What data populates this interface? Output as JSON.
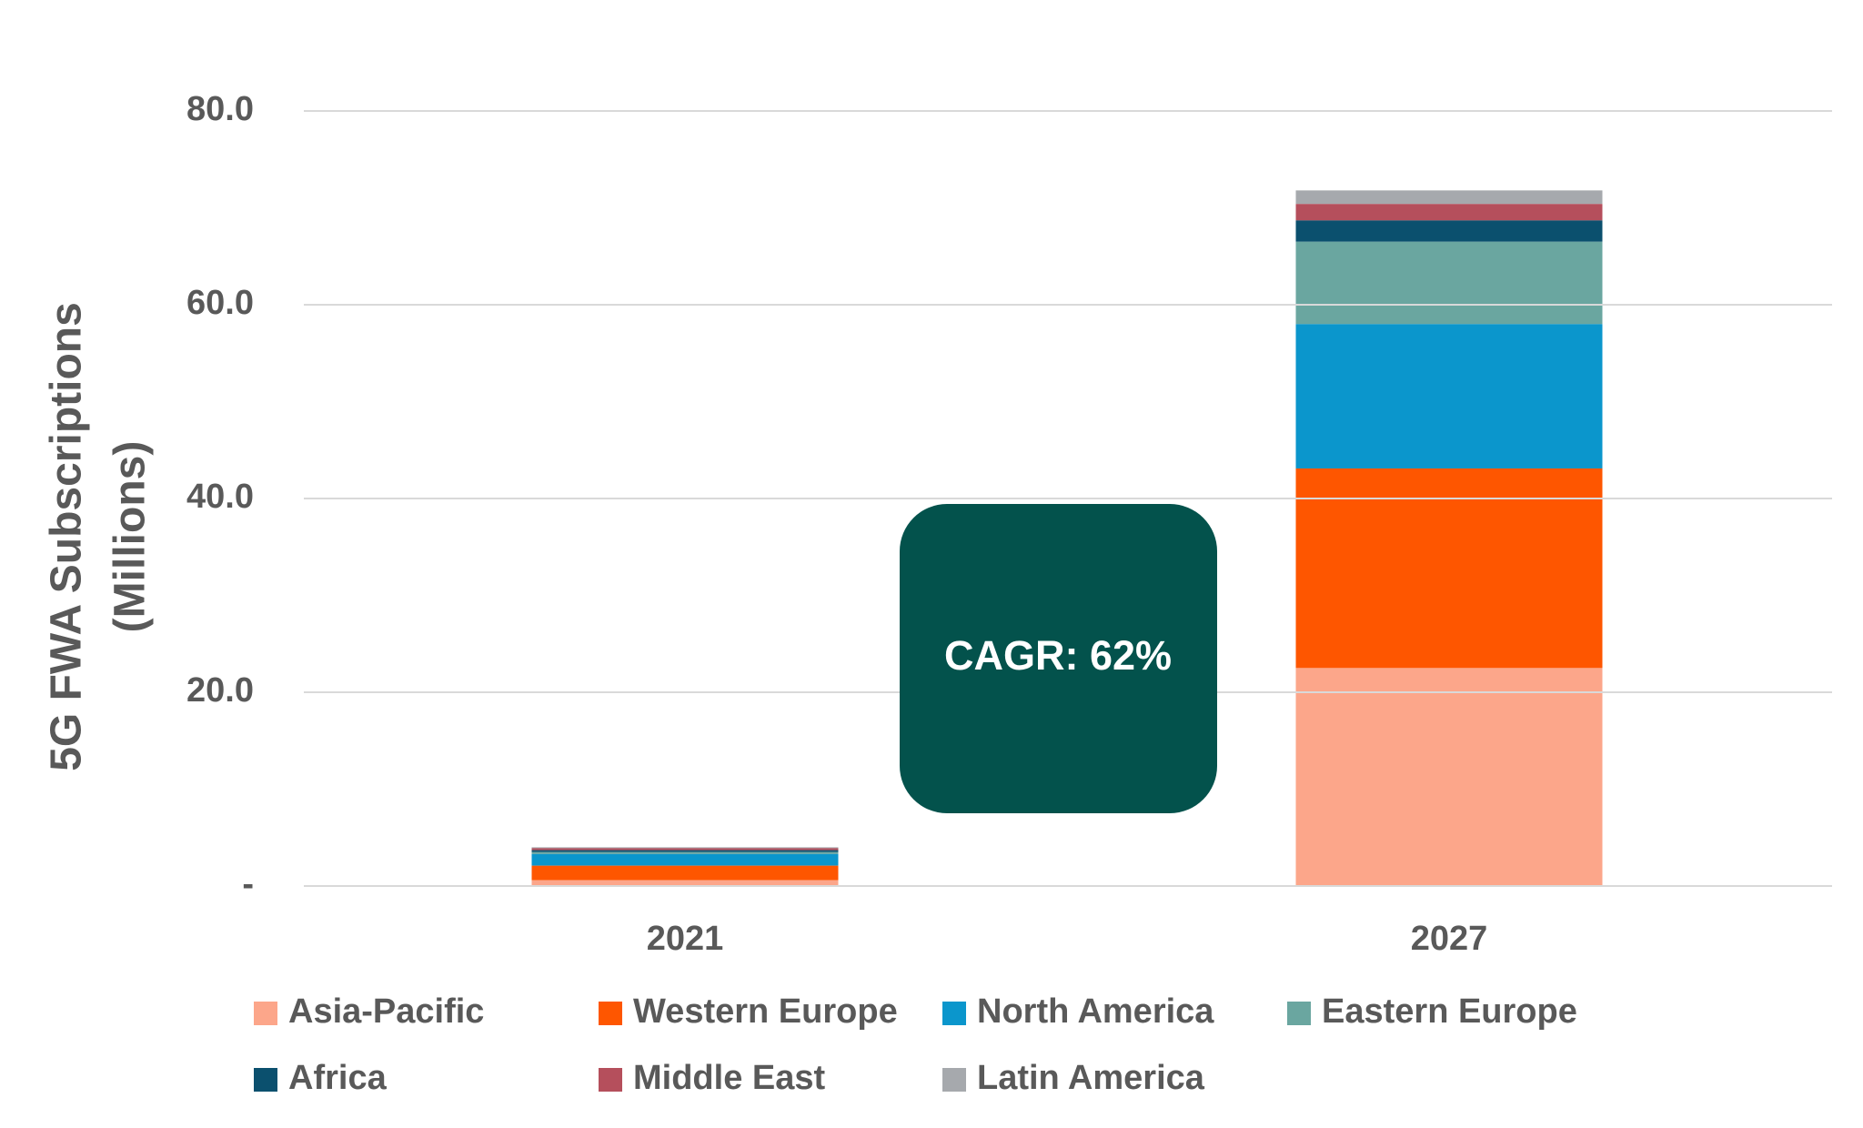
{
  "chart_data": {
    "type": "stacked_bar",
    "ylabel": [
      "5G FWA Subscriptions",
      "(Millions)"
    ],
    "annotation": "CAGR: 62%",
    "categories": [
      "2021",
      "2027"
    ],
    "series": [
      {
        "name": "Asia-Pacific",
        "color": "#fca68a",
        "values": [
          0.6,
          22.5
        ]
      },
      {
        "name": "Western Europe",
        "color": "#fe5600",
        "values": [
          1.5,
          20.6
        ]
      },
      {
        "name": "North America",
        "color": "#0b96cc",
        "values": [
          1.2,
          14.9
        ]
      },
      {
        "name": "Eastern Europe",
        "color": "#6aa6a0",
        "values": [
          0.2,
          8.5
        ]
      },
      {
        "name": "Africa",
        "color": "#0b506e",
        "values": [
          0.2,
          2.2
        ]
      },
      {
        "name": "Middle East",
        "color": "#b54f5c",
        "values": [
          0.2,
          1.7
        ]
      },
      {
        "name": "Latin America",
        "color": "#a6a9ad",
        "values": [
          0.1,
          1.4
        ]
      }
    ],
    "ylim": [
      0,
      80
    ],
    "yticks": [
      {
        "value": 0,
        "label": "-"
      },
      {
        "value": 20,
        "label": "20.0"
      },
      {
        "value": 40,
        "label": "40.0"
      },
      {
        "value": 60,
        "label": "60.0"
      },
      {
        "value": 80,
        "label": "80.0"
      }
    ],
    "grid": true
  }
}
